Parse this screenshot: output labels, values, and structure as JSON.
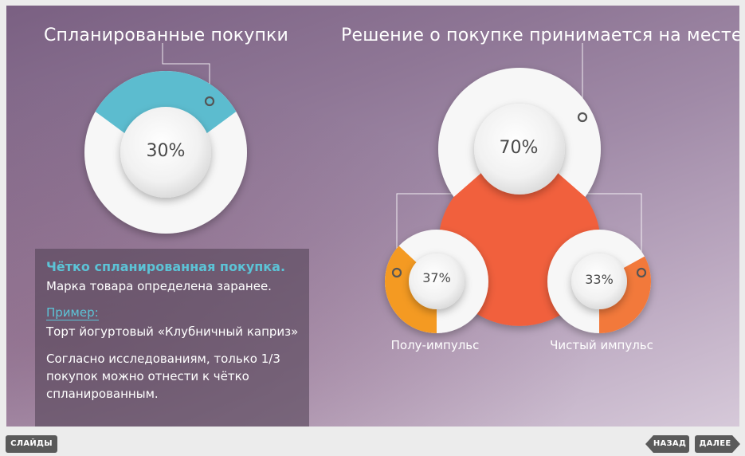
{
  "slide": {
    "title_left": "Спланированные покупки",
    "title_right": "Решение о покупке принимается на месте"
  },
  "chart_data": [
    {
      "type": "pie",
      "name": "Спланированные покупки",
      "values": [
        30,
        70
      ],
      "label": "30%",
      "color": "#5bbccf",
      "rest_color": "#f7f7f7"
    },
    {
      "type": "pie",
      "name": "Решение о покупке принимается на месте",
      "values": [
        70,
        30
      ],
      "label": "70%",
      "color": "#f1603c",
      "rest_color": "#f7f7f7"
    },
    {
      "type": "pie",
      "name": "Полу-импульс",
      "values": [
        37,
        63
      ],
      "label": "37%",
      "color": "#f49a24",
      "rest_color": "#f7f7f7"
    },
    {
      "type": "pie",
      "name": "Чистый импульс",
      "values": [
        33,
        67
      ],
      "label": "33%",
      "color": "#f2793a",
      "rest_color": "#f7f7f7"
    }
  ],
  "labels": {
    "semi": "Полу-импульс",
    "pure": "Чистый импульс"
  },
  "info": {
    "heading": "Чётко спланированная покупка.",
    "line1": "Марка товара определена заранее.",
    "example_label": "Пример:",
    "example": "Торт йогуртовый «Клубничный каприз»",
    "paragraph": "Согласно исследованиям, только 1/3 покупок можно отнести к чётко спланированным."
  },
  "nav": {
    "slides": "СЛАЙДЫ",
    "back": "НАЗАД",
    "next": "ДАЛЕЕ"
  }
}
